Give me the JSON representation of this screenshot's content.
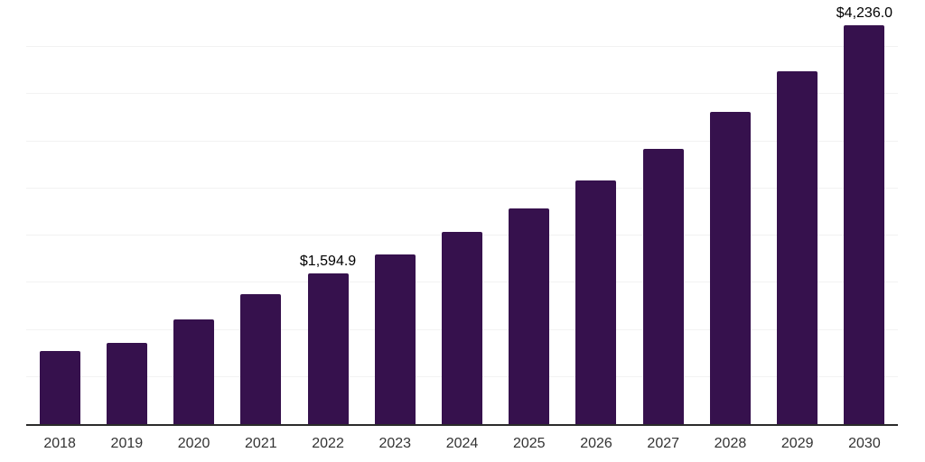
{
  "chart_data": {
    "type": "bar",
    "title": "",
    "xlabel": "",
    "ylabel": "",
    "categories": [
      "2018",
      "2019",
      "2020",
      "2021",
      "2022",
      "2023",
      "2024",
      "2025",
      "2026",
      "2027",
      "2028",
      "2029",
      "2030"
    ],
    "values": [
      780,
      865,
      1115,
      1380,
      1594.9,
      1800,
      2035,
      2290,
      2590,
      2925,
      3310,
      3740,
      4236
    ],
    "data_labels": [
      {
        "category": "2022",
        "text": "$1,594.9"
      },
      {
        "category": "2030",
        "text": "$4,236.0"
      }
    ],
    "ylim": [
      0,
      4500
    ],
    "gridline_step": 500,
    "grid": true,
    "legend": false,
    "y_axis_ticks_visible": false,
    "colors": {
      "bar": "#36114D",
      "grid_line": "#F2F2F2",
      "axis_line": "#2B2B2B",
      "tick_label": "#333333",
      "data_label": "#000000",
      "background": "#FFFFFF"
    }
  }
}
